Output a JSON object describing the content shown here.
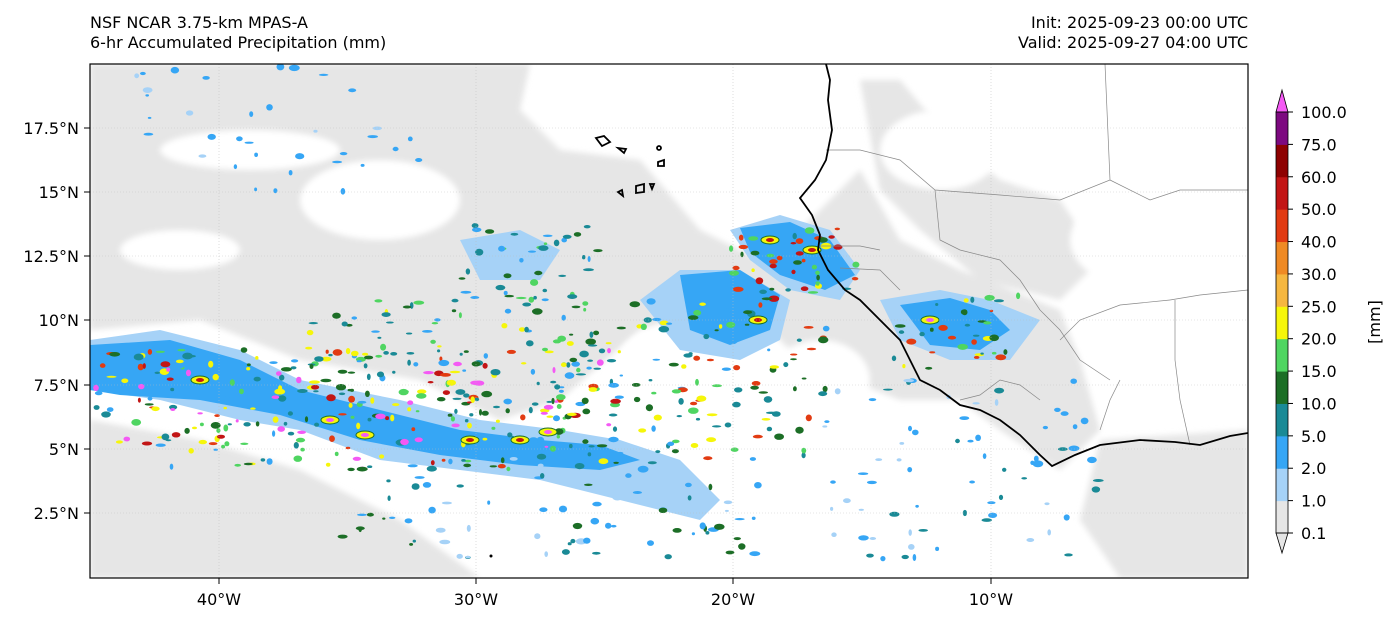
{
  "header": {
    "model": "NSF NCAR 3.75-km MPAS-A",
    "field": "6-hr Accumulated Precipitation (mm)",
    "init": "Init: 2025-09-23 00:00 UTC",
    "valid": "Valid: 2025-09-27 04:00 UTC"
  },
  "axes": {
    "lat_ticks": [
      "17.5°N",
      "15°N",
      "12.5°N",
      "10°N",
      "7.5°N",
      "5°N",
      "2.5°N"
    ],
    "lon_ticks": [
      "40°W",
      "30°W",
      "20°W",
      "10°W"
    ]
  },
  "colorbar": {
    "unit_label": "[mm]",
    "levels": [
      "0.1",
      "1.0",
      "2.0",
      "5.0",
      "10.0",
      "15.0",
      "20.0",
      "25.0",
      "30.0",
      "40.0",
      "50.0",
      "60.0",
      "75.0",
      "100.0"
    ],
    "colors": [
      "#e6e6e6",
      "#a6d2f7",
      "#36a6f5",
      "#1a8a96",
      "#1c6e26",
      "#4fd561",
      "#f6f60a",
      "#f5b740",
      "#ef8a24",
      "#e23b12",
      "#c21515",
      "#8e0101",
      "#7d0980",
      "#f459f4"
    ]
  }
}
